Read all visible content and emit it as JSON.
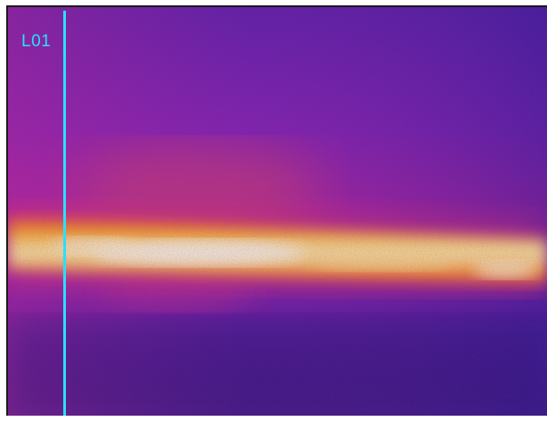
{
  "thermal_view": {
    "palette": "ironbow",
    "colors": {
      "cold": "#2a1278",
      "cool": "#5a1ab0",
      "mid": "#b2209a",
      "warm": "#e84a5a",
      "hot": "#ffa000",
      "hottest": "#fff6c8"
    },
    "line_tool": {
      "label": "L01",
      "color": "#29e0ff"
    }
  }
}
